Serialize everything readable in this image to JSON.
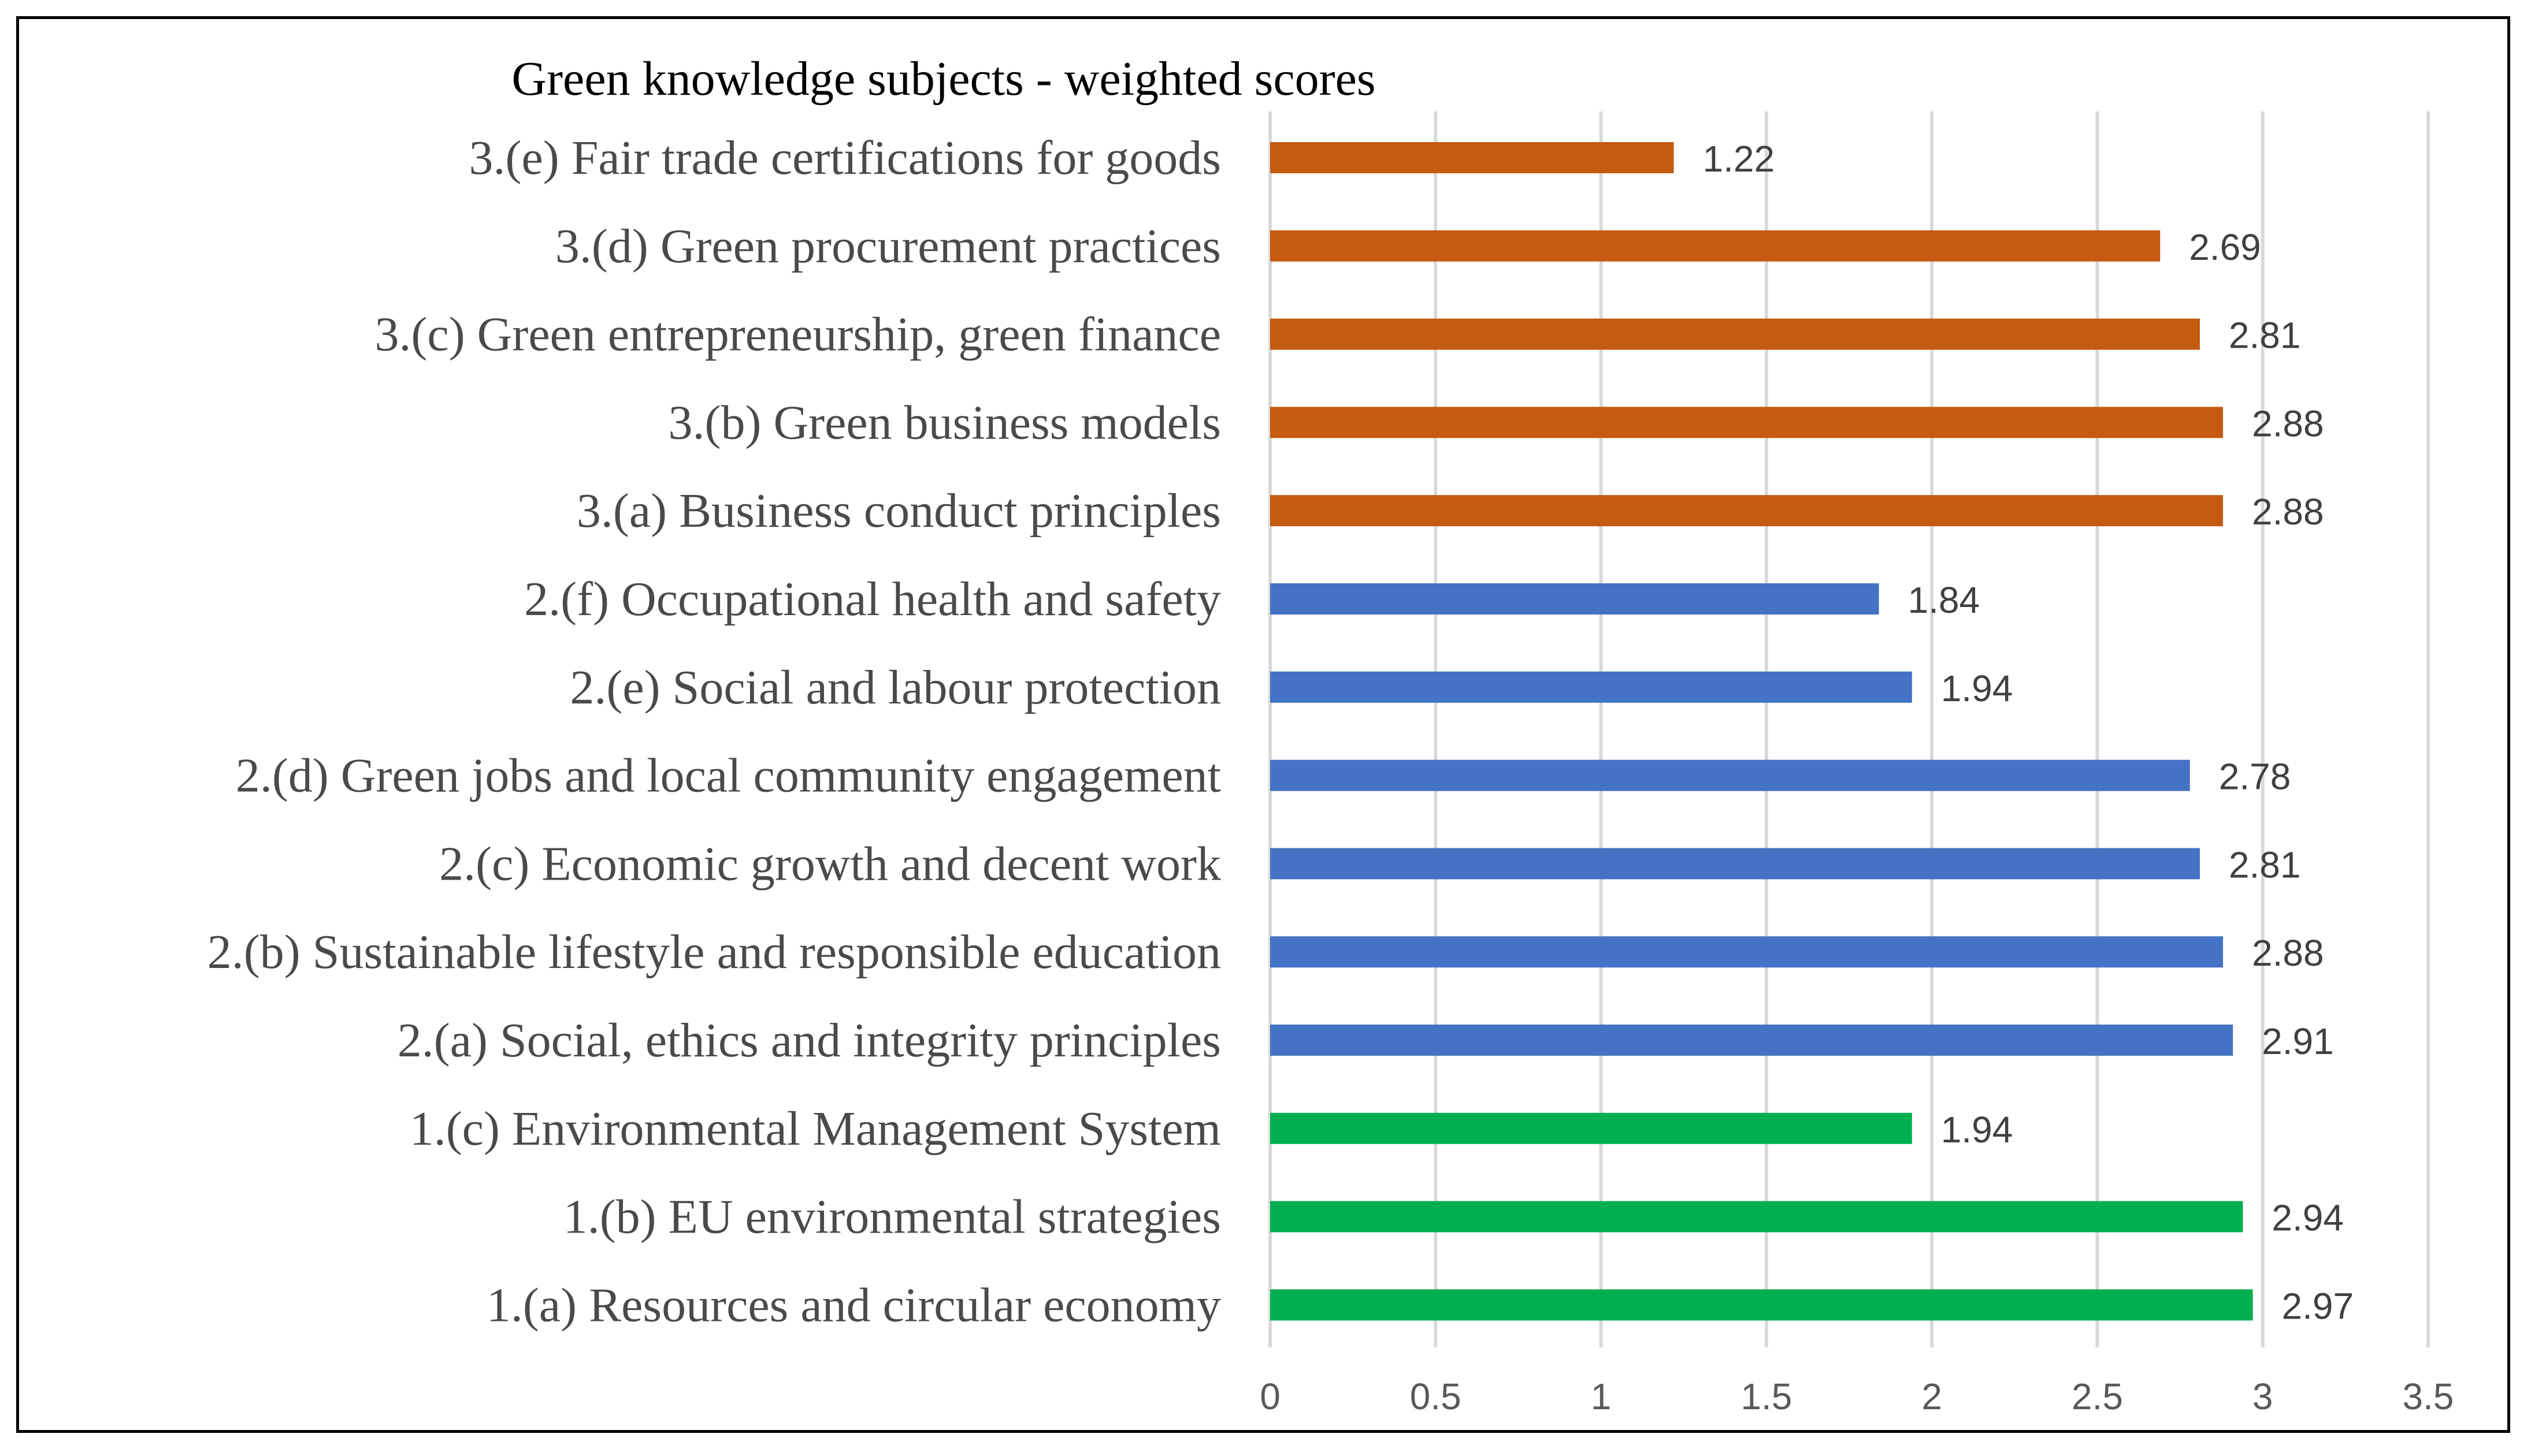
{
  "chart_data": {
    "type": "bar",
    "orientation": "horizontal",
    "title": "Green knowledge subjects - weighted scores",
    "xlabel": "",
    "ylabel": "",
    "xlim": [
      0,
      3.5
    ],
    "xticks": [
      "0",
      "0.5",
      "1",
      "1.5",
      "2",
      "2.5",
      "3",
      "3.5"
    ],
    "grid": true,
    "legend": "none",
    "colors": {
      "group1": "#00b050",
      "group2": "#4472c4",
      "group3": "#c55a11"
    },
    "bars": [
      {
        "category": "3.(e) Fair trade certifications for goods",
        "value": 1.22,
        "label": "1.22",
        "group": "group3"
      },
      {
        "category": "3.(d) Green procurement practices",
        "value": 2.69,
        "label": "2.69",
        "group": "group3"
      },
      {
        "category": "3.(c) Green entrepreneurship, green finance",
        "value": 2.81,
        "label": "2.81",
        "group": "group3"
      },
      {
        "category": "3.(b) Green business models",
        "value": 2.88,
        "label": "2.88",
        "group": "group3"
      },
      {
        "category": "3.(a) Business conduct principles",
        "value": 2.88,
        "label": "2.88",
        "group": "group3"
      },
      {
        "category": "2.(f) Occupational health and safety",
        "value": 1.84,
        "label": "1.84",
        "group": "group2"
      },
      {
        "category": "2.(e) Social and labour protection",
        "value": 1.94,
        "label": "1.94",
        "group": "group2"
      },
      {
        "category": "2.(d) Green jobs and local community engagement",
        "value": 2.78,
        "label": "2.78",
        "group": "group2"
      },
      {
        "category": "2.(c) Economic growth and decent work",
        "value": 2.81,
        "label": "2.81",
        "group": "group2"
      },
      {
        "category": "2.(b) Sustainable lifestyle and responsible education",
        "value": 2.88,
        "label": "2.88",
        "group": "group2"
      },
      {
        "category": "2.(a) Social, ethics and integrity principles",
        "value": 2.91,
        "label": "2.91",
        "group": "group2"
      },
      {
        "category": "1.(c) Environmental Management System",
        "value": 1.94,
        "label": "1.94",
        "group": "group1"
      },
      {
        "category": "1.(b) EU environmental strategies",
        "value": 2.94,
        "label": "2.94",
        "group": "group1"
      },
      {
        "category": "1.(a) Resources and circular economy",
        "value": 2.97,
        "label": "2.97",
        "group": "group1"
      }
    ]
  }
}
